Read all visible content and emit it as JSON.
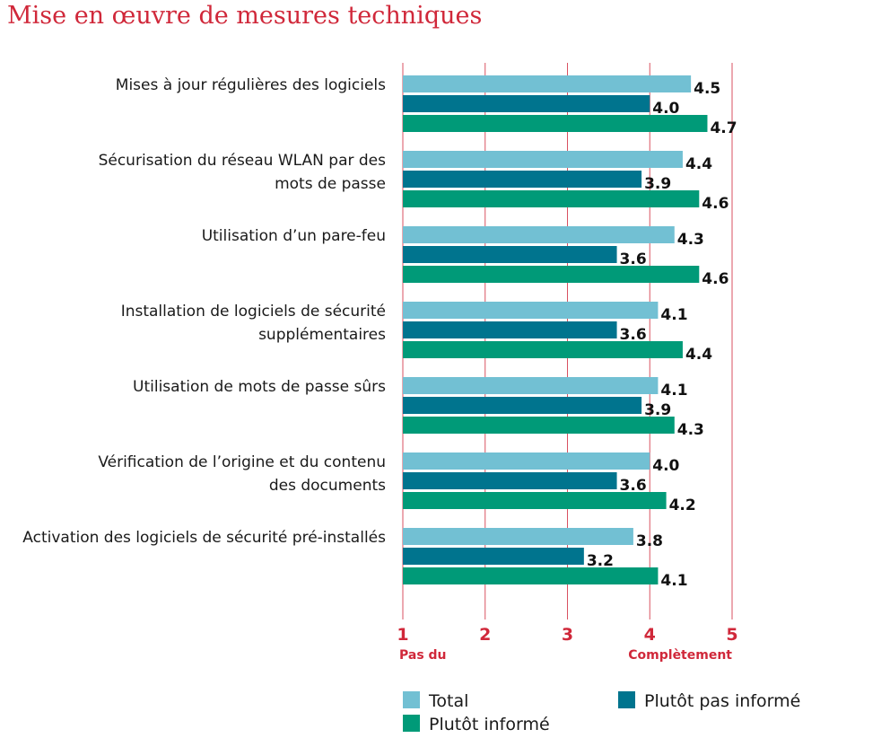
{
  "chart_data": {
    "type": "bar",
    "orientation": "horizontal",
    "title": "Mise en œuvre de mesures techniques",
    "categories": [
      [
        "Mises à jour régulières des logiciels"
      ],
      [
        "Sécurisation du réseau WLAN par des",
        "mots de passe"
      ],
      [
        "Utilisation d’un pare-feu"
      ],
      [
        "Installation de logiciels de sécurité",
        "supplémentaires"
      ],
      [
        "Utilisation de mots de passe sûrs"
      ],
      [
        "Vérification de l’origine et du contenu",
        "des documents"
      ],
      [
        "Activation des logiciels de sécurité pré-installés"
      ]
    ],
    "series": [
      {
        "name": "Total",
        "color": "#72c0d3",
        "values": [
          4.5,
          4.4,
          4.3,
          4.1,
          4.1,
          4.0,
          3.8
        ]
      },
      {
        "name": "Plutôt pas informé",
        "color": "#00748e",
        "values": [
          4.0,
          3.9,
          3.6,
          3.6,
          3.9,
          3.6,
          3.2
        ]
      },
      {
        "name": "Plutôt informé",
        "color": "#009a78",
        "values": [
          4.7,
          4.6,
          4.6,
          4.4,
          4.3,
          4.2,
          4.1
        ]
      }
    ],
    "xlim": [
      1,
      5
    ],
    "xticks": [
      "1",
      "2",
      "3",
      "4",
      "5"
    ],
    "x_anchor_labels": {
      "min": "Pas du",
      "max": "Complètement"
    },
    "grid": true,
    "grid_color": "#d0283a",
    "legend_placement": "bottom"
  }
}
